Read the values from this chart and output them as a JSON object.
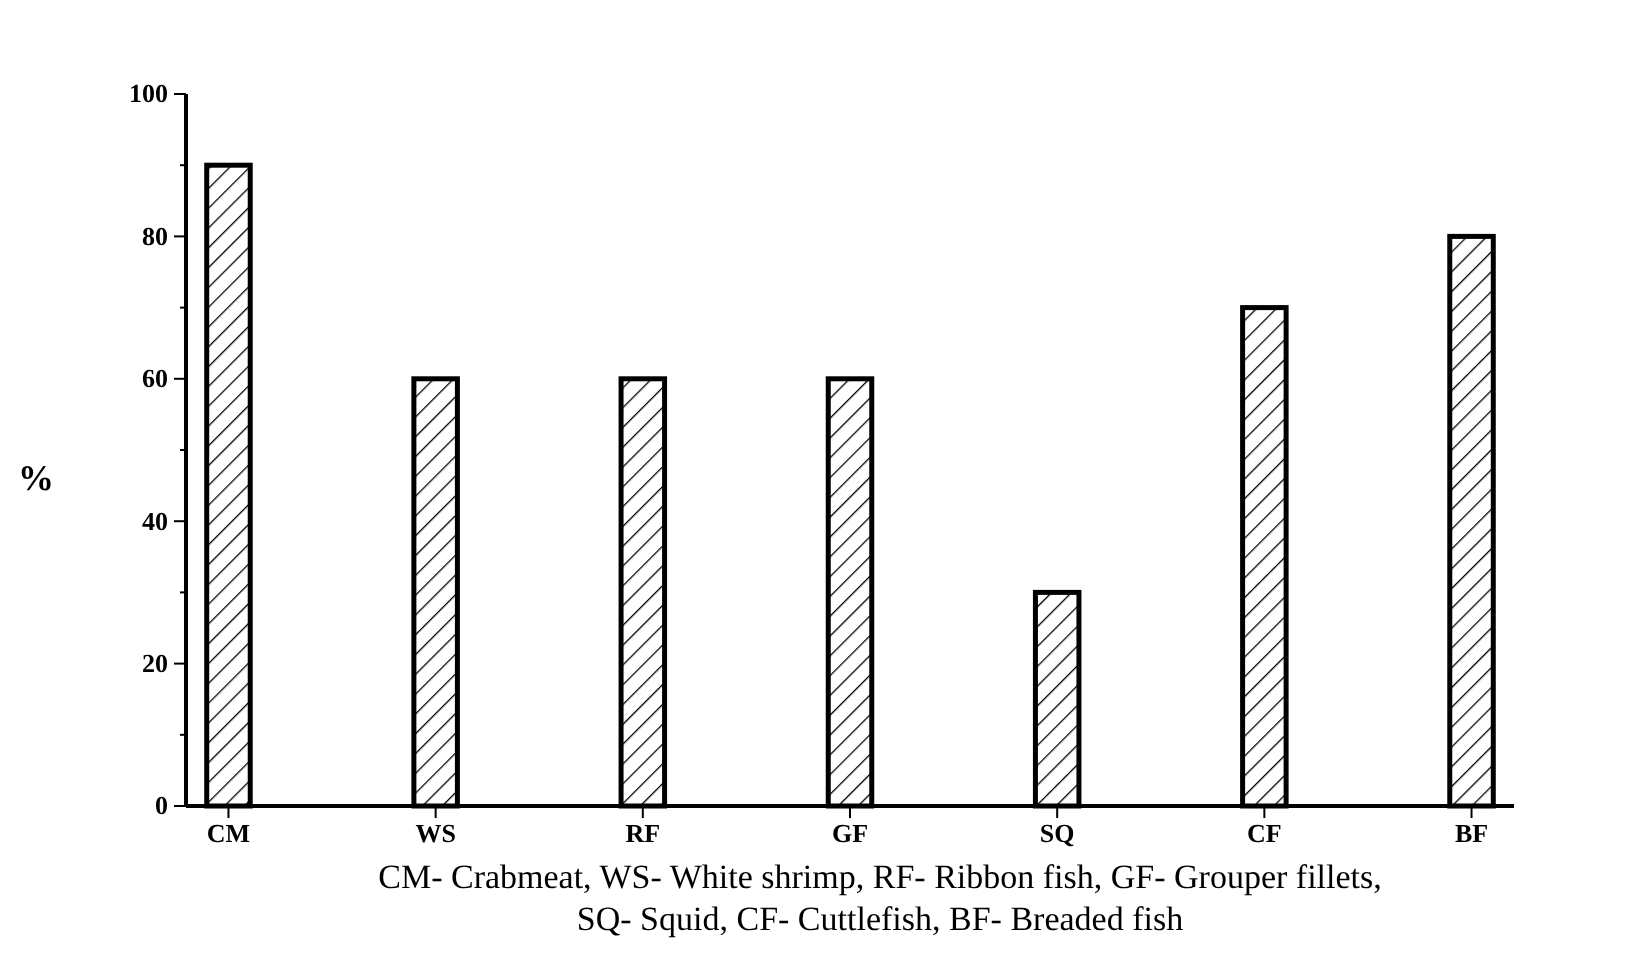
{
  "chart_data": {
    "type": "bar",
    "ylabel": "%",
    "categories": [
      "CM",
      "WS",
      "RF",
      "GF",
      "SQ",
      "CF",
      "BF"
    ],
    "values": [
      90,
      60,
      60,
      60,
      30,
      70,
      80
    ],
    "color": "#000000",
    "ylim": [
      0,
      100
    ],
    "yticks": [
      0,
      {
        "value": 10,
        "label": null
      },
      20,
      {
        "value": 30,
        "label": null
      },
      40,
      {
        "value": 50,
        "label": null
      },
      60,
      {
        "value": 70,
        "label": null
      },
      80,
      {
        "value": 90,
        "label": null
      },
      100
    ],
    "annotations": [
      "CM- Crabmeat, WS- White shrimp, RF- Ribbon fish, GF- Grouper fillets,",
      "SQ- Squid, CF- Cuttlefish, BF- Breaded fish"
    ]
  }
}
